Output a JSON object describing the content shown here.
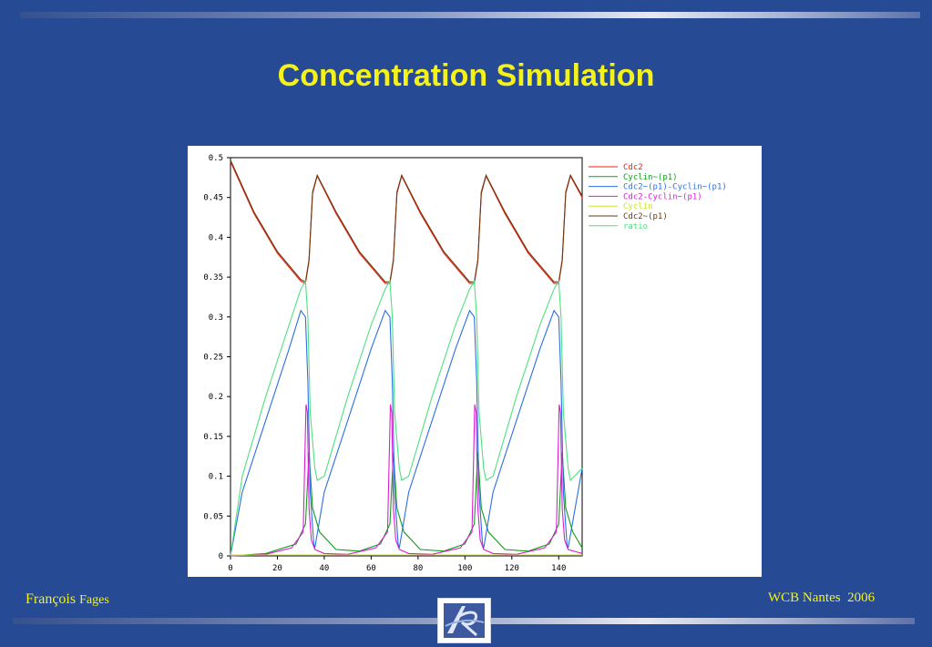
{
  "slide": {
    "title": "Concentration Simulation",
    "footer_author_first": "François",
    "footer_author_last": "Fages",
    "footer_event": "WCB Nantes  2006"
  },
  "colors": {
    "background": "#264a93",
    "title": "#f5f21a"
  },
  "chart_data": {
    "type": "line",
    "xlim": [
      0,
      150
    ],
    "ylim": [
      0,
      0.5
    ],
    "x_ticks": [
      "0",
      "20",
      "40",
      "60",
      "80",
      "100",
      "120",
      "140"
    ],
    "y_ticks": [
      "0",
      "0.05",
      "0.1",
      "0.15",
      "0.2",
      "0.25",
      "0.3",
      "0.35",
      "0.4",
      "0.45",
      "0.5"
    ],
    "legend_position": "top-right",
    "grid": false,
    "series": [
      {
        "name": "Cdc2",
        "color": "#e8220f",
        "x": [
          0,
          10,
          20,
          30,
          32,
          33.5,
          35,
          37,
          45,
          55,
          66,
          68,
          69.5,
          71,
          73,
          81,
          91,
          102,
          104,
          105.5,
          107,
          109,
          117,
          127,
          138,
          140,
          141.5,
          143,
          145,
          150
        ],
        "y": [
          0.495,
          0.43,
          0.38,
          0.345,
          0.342,
          0.37,
          0.455,
          0.477,
          0.43,
          0.38,
          0.342,
          0.342,
          0.37,
          0.455,
          0.477,
          0.43,
          0.38,
          0.342,
          0.342,
          0.37,
          0.455,
          0.477,
          0.43,
          0.38,
          0.342,
          0.342,
          0.37,
          0.455,
          0.477,
          0.45
        ]
      },
      {
        "name": "Cyclin~(p1)",
        "color": "#139b1d",
        "x": [
          0,
          15,
          28,
          32,
          33.5,
          35,
          38,
          45,
          55,
          64,
          68,
          69.5,
          71,
          74,
          81,
          91,
          100,
          104,
          105.5,
          107,
          110,
          117,
          127,
          136,
          140,
          141.5,
          143,
          146,
          150
        ],
        "y": [
          0,
          0.003,
          0.015,
          0.04,
          0.13,
          0.06,
          0.03,
          0.008,
          0.006,
          0.015,
          0.04,
          0.13,
          0.06,
          0.03,
          0.008,
          0.006,
          0.015,
          0.04,
          0.13,
          0.06,
          0.03,
          0.008,
          0.006,
          0.015,
          0.04,
          0.13,
          0.06,
          0.03,
          0.01
        ]
      },
      {
        "name": "Cdc2~(p1)-Cyclin~(p1)",
        "color": "#2b6ee6",
        "x": [
          0,
          5,
          15,
          25,
          30,
          32,
          33,
          34,
          35.5,
          36,
          40,
          50,
          60,
          66,
          68,
          69,
          70,
          71.5,
          72,
          76,
          86,
          96,
          102,
          104,
          105,
          106,
          107.5,
          108,
          112,
          122,
          132,
          138,
          140,
          141,
          142,
          143.5,
          144,
          147,
          150
        ],
        "y": [
          0,
          0.08,
          0.17,
          0.26,
          0.308,
          0.3,
          0.22,
          0.08,
          0.015,
          0.01,
          0.08,
          0.17,
          0.26,
          0.308,
          0.3,
          0.22,
          0.08,
          0.015,
          0.01,
          0.08,
          0.17,
          0.26,
          0.308,
          0.3,
          0.22,
          0.08,
          0.015,
          0.01,
          0.08,
          0.17,
          0.26,
          0.308,
          0.3,
          0.22,
          0.08,
          0.015,
          0.01,
          0.06,
          0.11
        ]
      },
      {
        "name": "Cdc2-Cyclin~(p1)",
        "color": "#d81ed2",
        "x": [
          0,
          15,
          26,
          31,
          32.2,
          32.8,
          33.5,
          34.5,
          36,
          40,
          50,
          62,
          67,
          68.2,
          68.8,
          69.5,
          70.5,
          72,
          76,
          86,
          98,
          103,
          104.2,
          104.8,
          105.5,
          106.5,
          108,
          112,
          122,
          134,
          139,
          140.2,
          140.8,
          141.5,
          142.5,
          144,
          150
        ],
        "y": [
          0,
          0.002,
          0.01,
          0.03,
          0.19,
          0.18,
          0.06,
          0.02,
          0.008,
          0.003,
          0.002,
          0.01,
          0.03,
          0.19,
          0.18,
          0.06,
          0.02,
          0.008,
          0.003,
          0.002,
          0.01,
          0.03,
          0.19,
          0.18,
          0.06,
          0.02,
          0.008,
          0.003,
          0.002,
          0.01,
          0.03,
          0.19,
          0.18,
          0.06,
          0.02,
          0.008,
          0.003
        ]
      },
      {
        "name": "Cyclin",
        "color": "#c9e63a",
        "x": [
          0,
          150
        ],
        "y": [
          0.001,
          0.001
        ]
      },
      {
        "name": "Cdc2~(p1)",
        "color": "#6a3b12",
        "x": [
          0,
          10,
          20,
          30,
          32,
          33.5,
          35,
          37,
          45,
          55,
          66,
          68,
          69.5,
          71,
          73,
          81,
          91,
          102,
          104,
          105.5,
          107,
          109,
          117,
          127,
          138,
          140,
          141.5,
          143,
          145,
          150
        ],
        "y": [
          0.497,
          0.432,
          0.382,
          0.347,
          0.344,
          0.372,
          0.457,
          0.478,
          0.432,
          0.382,
          0.344,
          0.344,
          0.372,
          0.457,
          0.478,
          0.432,
          0.382,
          0.344,
          0.344,
          0.372,
          0.457,
          0.478,
          0.432,
          0.382,
          0.344,
          0.344,
          0.372,
          0.457,
          0.478,
          0.452
        ]
      },
      {
        "name": "ratio",
        "color": "#4fe07f",
        "x": [
          0,
          5,
          15,
          25,
          30,
          32,
          33,
          34,
          36,
          37,
          40,
          50,
          60,
          66,
          68,
          69,
          70,
          72,
          73,
          76,
          86,
          96,
          102,
          104,
          105,
          106,
          108,
          109,
          112,
          122,
          132,
          138,
          140,
          141,
          142,
          144,
          145,
          150
        ],
        "y": [
          0,
          0.1,
          0.2,
          0.29,
          0.335,
          0.345,
          0.3,
          0.18,
          0.11,
          0.095,
          0.1,
          0.2,
          0.29,
          0.335,
          0.345,
          0.3,
          0.18,
          0.11,
          0.095,
          0.1,
          0.2,
          0.29,
          0.335,
          0.345,
          0.3,
          0.18,
          0.11,
          0.095,
          0.1,
          0.2,
          0.29,
          0.335,
          0.345,
          0.3,
          0.18,
          0.11,
          0.095,
          0.11
        ]
      }
    ]
  }
}
